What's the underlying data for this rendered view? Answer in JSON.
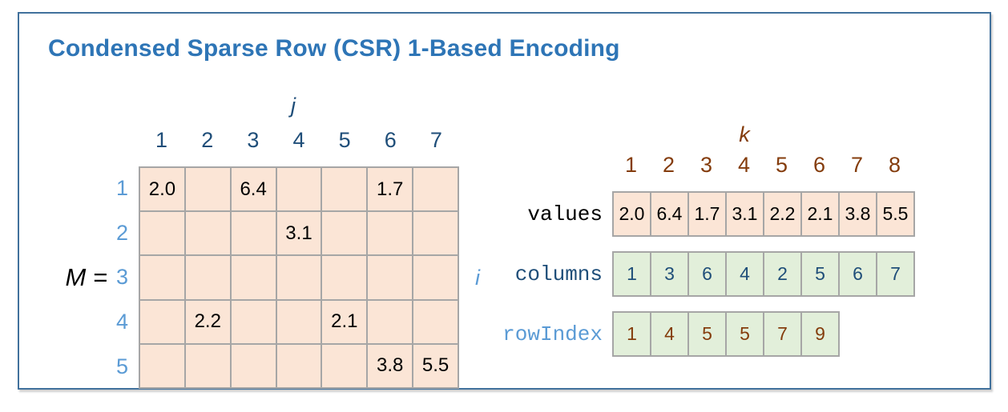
{
  "title": "Condensed Sparse Row (CSR) 1-Based Encoding",
  "colors": {
    "title_blue": "#2e75b6",
    "navy": "#1f4e79",
    "light_blue": "#5b9bd5",
    "brown": "#843c0c",
    "black": "#000000",
    "peach_fill": "#fbe5d6",
    "green_fill": "#e2efda",
    "cell_border": "#a6a6a6",
    "frame_border": "#41719c"
  },
  "matrix": {
    "name_label": "M =",
    "col_axis_label": "j",
    "row_axis_label": "i",
    "col_headers": [
      "1",
      "2",
      "3",
      "4",
      "5",
      "6",
      "7"
    ],
    "row_headers": [
      "1",
      "2",
      "3",
      "4",
      "5"
    ],
    "cells": [
      [
        "2.0",
        "",
        "6.4",
        "",
        "",
        "1.7",
        ""
      ],
      [
        "",
        "",
        "",
        "3.1",
        "",
        "",
        ""
      ],
      [
        "",
        "",
        "",
        "",
        "",
        "",
        ""
      ],
      [
        "",
        "2.2",
        "",
        "",
        "2.1",
        "",
        ""
      ],
      [
        "",
        "",
        "",
        "",
        "",
        "3.8",
        "5.5"
      ]
    ]
  },
  "arrays": {
    "k_axis_label": "k",
    "k_indices": [
      "1",
      "2",
      "3",
      "4",
      "5",
      "6",
      "7",
      "8"
    ],
    "rows": [
      {
        "label": "values",
        "values": [
          "2.0",
          "6.4",
          "1.7",
          "3.1",
          "2.2",
          "2.1",
          "3.8",
          "5.5"
        ],
        "fill": "peach_fill",
        "label_color": "black",
        "value_color": "black"
      },
      {
        "label": "columns",
        "values": [
          "1",
          "3",
          "6",
          "4",
          "2",
          "5",
          "6",
          "7"
        ],
        "fill": "green_fill",
        "label_color": "navy",
        "value_color": "navy"
      },
      {
        "label": "rowIndex",
        "values": [
          "1",
          "4",
          "5",
          "5",
          "7",
          "9"
        ],
        "fill": "green_fill",
        "label_color": "light_blue",
        "value_color": "brown"
      }
    ]
  }
}
